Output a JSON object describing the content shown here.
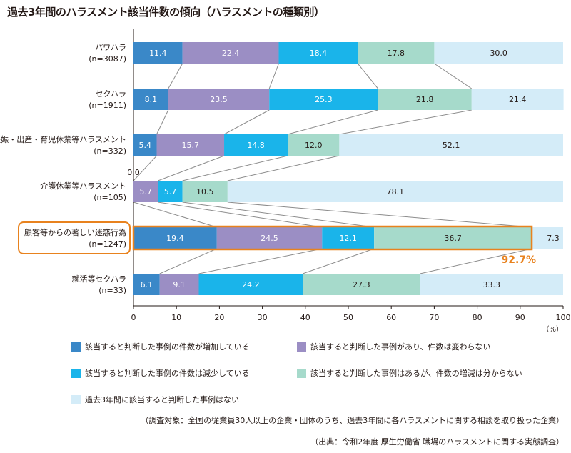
{
  "title": "過去3年間のハラスメント該当件数の傾向（ハラスメントの種類別）",
  "chart_data": {
    "type": "stacked-bar-horizontal",
    "title": "過去3年間のハラスメント該当件数の傾向（ハラスメントの種類別）",
    "categories": [
      {
        "label": "パワハラ",
        "n": "(n=3087)",
        "highlight": false
      },
      {
        "label": "セクハラ",
        "n": "(n=1911)",
        "highlight": false
      },
      {
        "label": "妊娠・出産・育児休業等ハラスメント",
        "n": "(n=332)",
        "highlight": false
      },
      {
        "label": "介護休業等ハラスメント",
        "n": "(n=105)",
        "highlight": false
      },
      {
        "label": "顧客等からの著しい迷惑行為",
        "n": "(n=1247)",
        "highlight": true
      },
      {
        "label": "就活等セクハラ",
        "n": "(n=33)",
        "highlight": false
      }
    ],
    "series": [
      {
        "name": "該当すると判断した事例の件数が増加している",
        "color": "#3a88c8",
        "values": [
          11.4,
          8.1,
          5.4,
          0.0,
          19.4,
          6.1
        ]
      },
      {
        "name": "該当すると判断した事例があり、件数は変わらない",
        "color": "#9b8ec4",
        "values": [
          22.4,
          23.5,
          15.7,
          5.7,
          24.5,
          9.1
        ]
      },
      {
        "name": "該当すると判断した事例の件数は減少している",
        "color": "#1ab4ea",
        "values": [
          18.4,
          25.3,
          14.8,
          5.7,
          12.1,
          24.2
        ]
      },
      {
        "name": "該当すると判断した事例はあるが、件数の増減は分からない",
        "color": "#a6dacb",
        "values": [
          17.8,
          21.8,
          12.0,
          10.5,
          36.7,
          27.3
        ]
      },
      {
        "name": "過去3年間に該当すると判断した事例はない",
        "color": "#d4ecf8",
        "values": [
          30.0,
          21.4,
          52.1,
          78.1,
          7.3,
          33.3
        ]
      }
    ],
    "value_labels": [
      [
        "11.4",
        "22.4",
        "18.4",
        "17.8",
        "30.0"
      ],
      [
        "8.1",
        "23.5",
        "25.3",
        "21.8",
        "21.4"
      ],
      [
        "5.4",
        "15.7",
        "14.8",
        "12.0",
        "52.1"
      ],
      [
        "0.0",
        "5.7",
        "5.7",
        "10.5",
        "78.1"
      ],
      [
        "19.4",
        "24.5",
        "12.1",
        "36.7",
        "7.3"
      ],
      [
        "6.1",
        "9.1",
        "24.2",
        "27.3",
        "33.3"
      ]
    ],
    "x_ticks": [
      "0",
      "10",
      "20",
      "30",
      "40",
      "50",
      "60",
      "70",
      "80",
      "90",
      "100"
    ],
    "xlim": [
      0,
      100
    ],
    "x_unit": "（%）",
    "highlight_total_label": "92.7%",
    "highlight_total_value": 92.7,
    "highlight_color": "#e8821e"
  },
  "notes": [
    "（調査対象：全国の従業員30人以上の企業・団体のうち、過去3年間に各ハラスメントに関する相談を取り扱った企業）",
    "（出典：令和2年度 厚生労働省 職場のハラスメントに関する実態調査）"
  ]
}
